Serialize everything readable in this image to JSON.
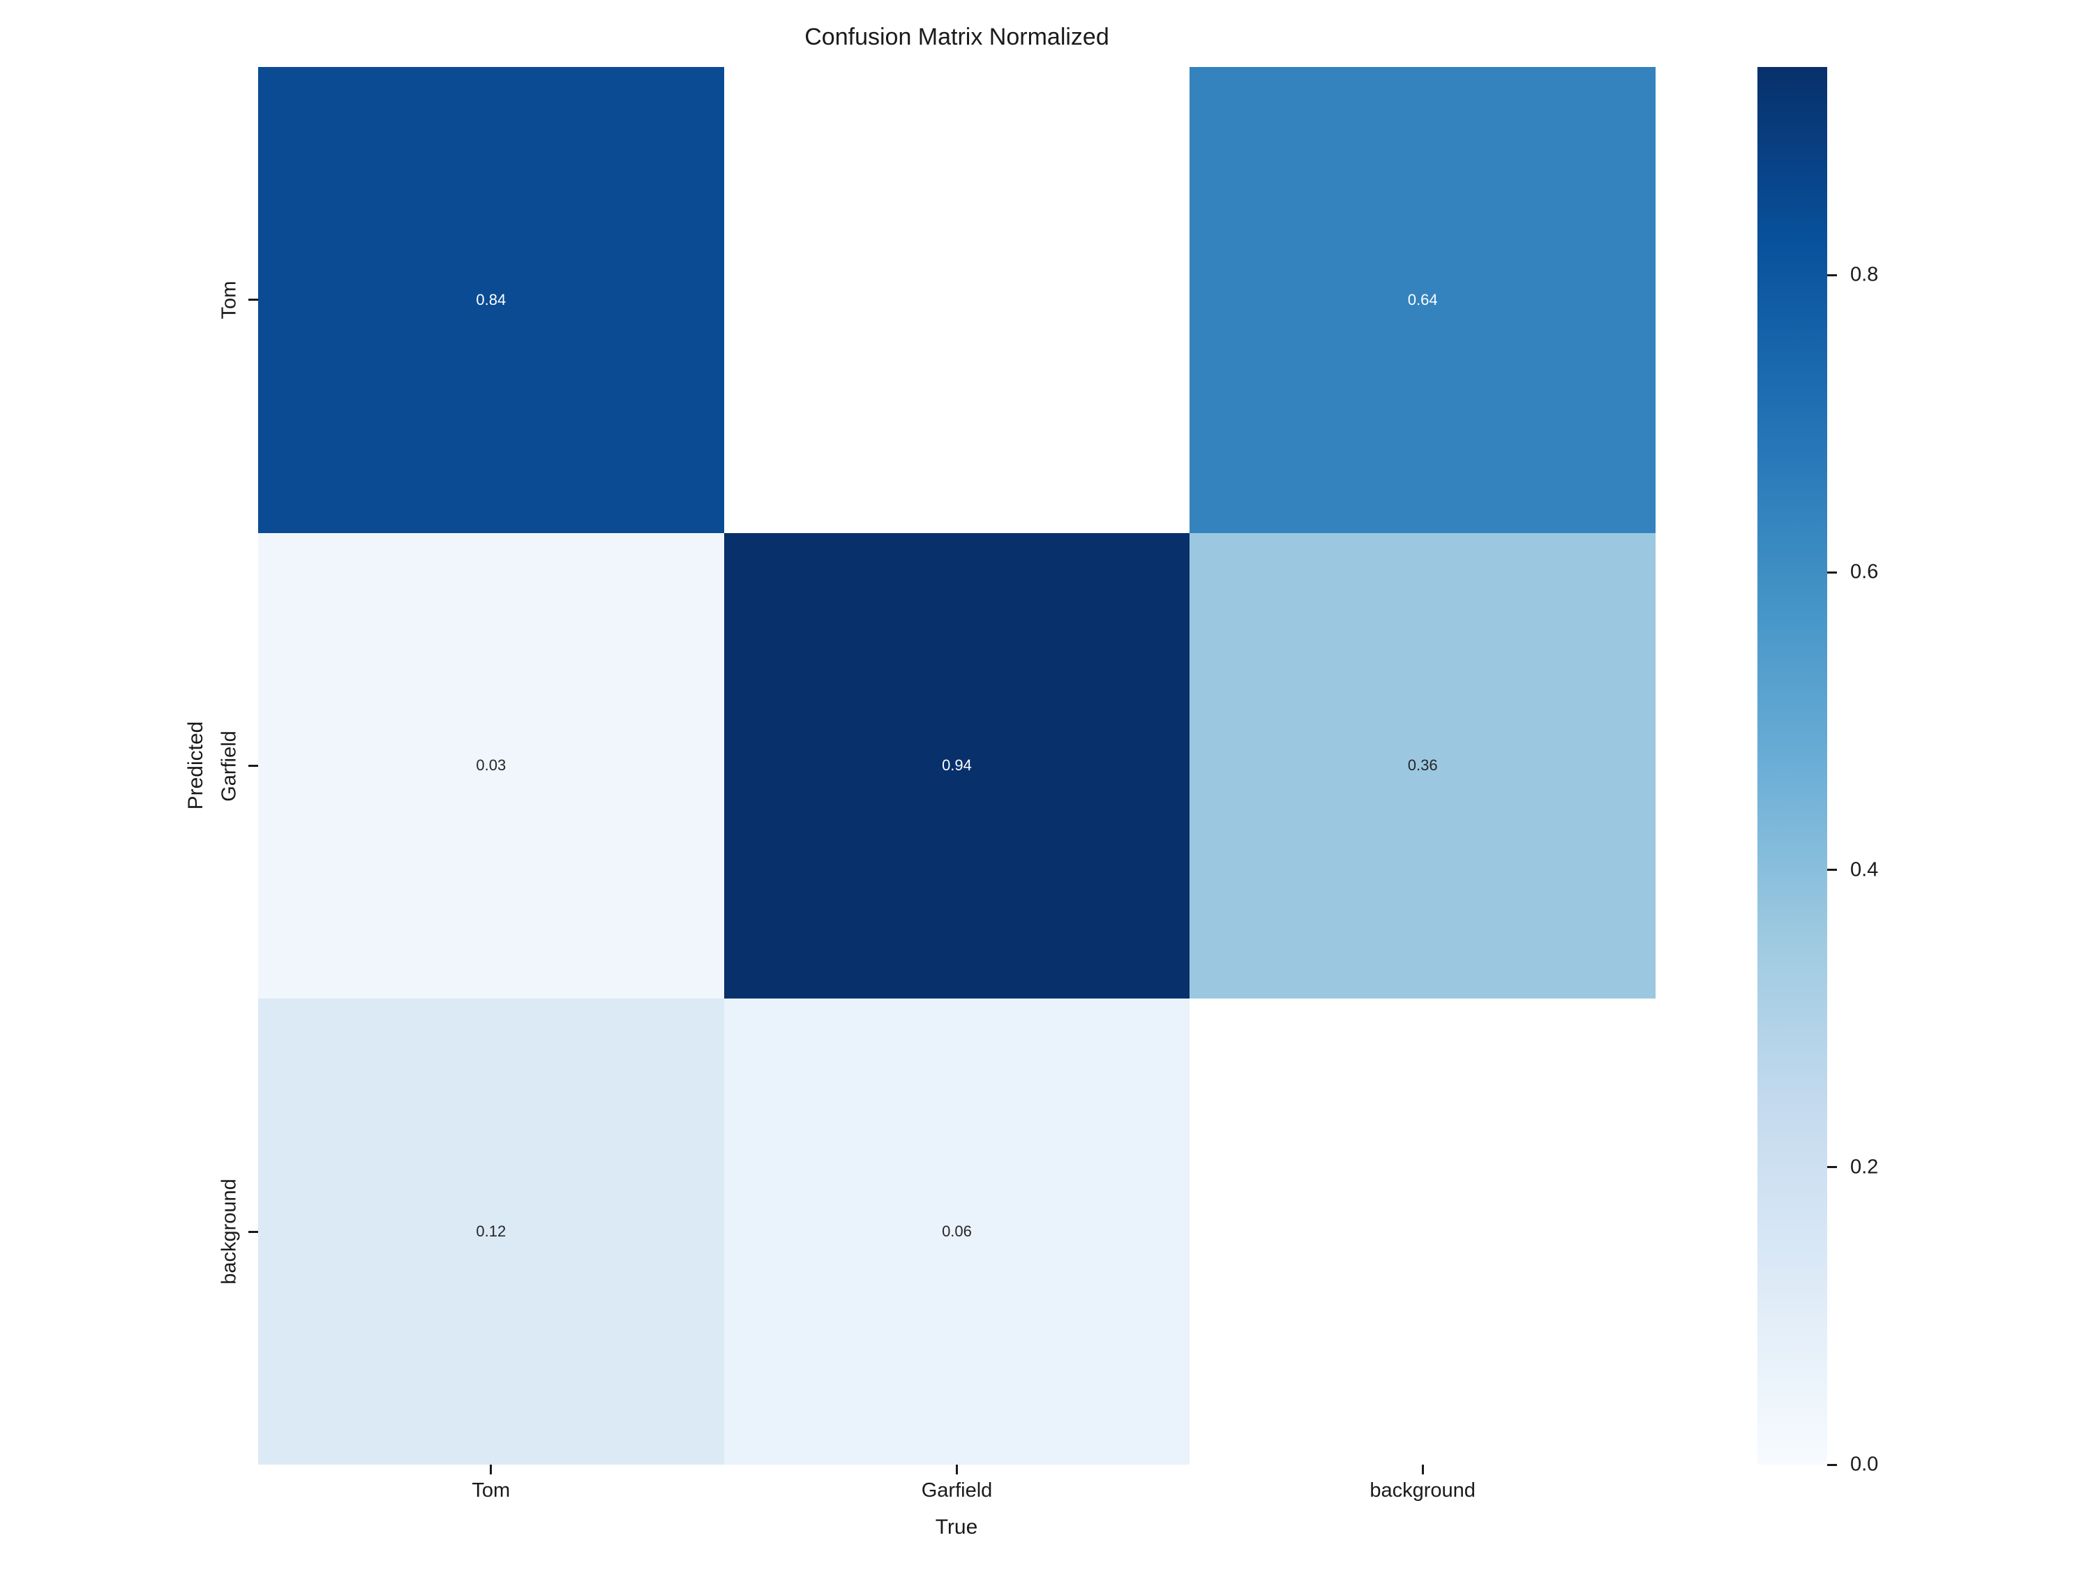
{
  "chart_data": {
    "type": "heatmap",
    "title": "Confusion Matrix Normalized",
    "xlabel": "True",
    "ylabel": "Predicted",
    "x_categories": [
      "Tom",
      "Garfield",
      "background"
    ],
    "y_categories": [
      "Tom",
      "Garfield",
      "background"
    ],
    "matrix": [
      [
        0.84,
        null,
        0.64
      ],
      [
        0.03,
        0.94,
        0.36
      ],
      [
        0.12,
        0.06,
        null
      ]
    ],
    "annotations": [
      [
        "0.84",
        "",
        "0.64"
      ],
      [
        "0.03",
        "0.94",
        "0.36"
      ],
      [
        "0.12",
        "0.06",
        ""
      ]
    ],
    "cell_colors": [
      [
        "#0a4b93",
        "#ffffff",
        "#3483be"
      ],
      [
        "#f1f6fd",
        "#08306b",
        "#9bc8e0"
      ],
      [
        "#dceaf6",
        "#eaf2fb",
        "#ffffff"
      ]
    ],
    "annotation_colors": [
      [
        "#ffffff",
        "",
        "#ffffff"
      ],
      [
        "#262626",
        "#ffffff",
        "#262626"
      ],
      [
        "#262626",
        "#262626",
        ""
      ]
    ],
    "colormap": "Blues",
    "grid": false,
    "colorbar": {
      "position": "right",
      "vmin": 0.0,
      "vmax": 0.94,
      "ticks": [
        0.8,
        0.6,
        0.4,
        0.2,
        0.0
      ],
      "tick_labels": [
        "0.8",
        "0.6",
        "0.4",
        "0.2",
        "0.0"
      ],
      "gradient_stops": [
        "#f7fbff",
        "#deebf7",
        "#c6dbef",
        "#9ecae1",
        "#6baed6",
        "#4292c6",
        "#2171b5",
        "#08519c",
        "#08306b"
      ]
    },
    "text_color": "#1a1a1a"
  }
}
